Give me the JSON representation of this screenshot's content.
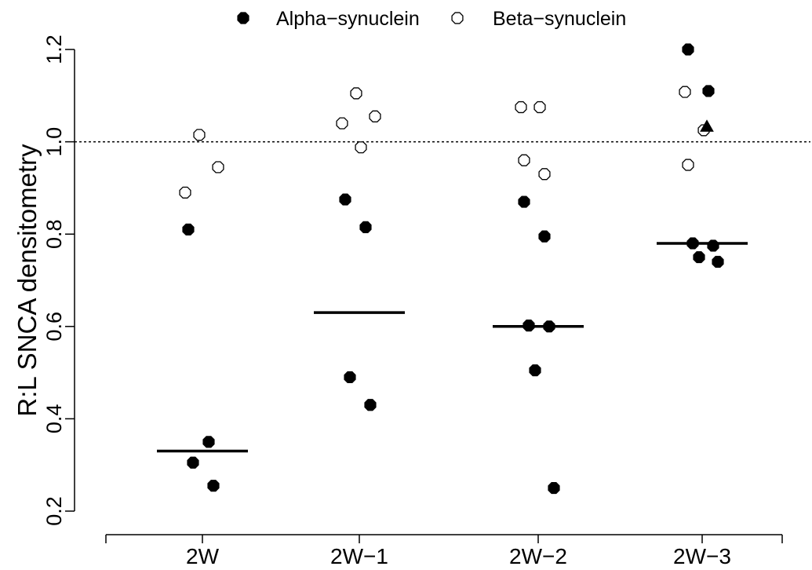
{
  "chart_data": {
    "type": "scatter",
    "title": "",
    "xlabel": "",
    "ylabel": "R:L SNCA densitometry",
    "categories": [
      "2W",
      "2W−1",
      "2W−2",
      "2W−3"
    ],
    "ylim": [
      0.2,
      1.2
    ],
    "yticks": [
      "0.2",
      "0.4",
      "0.6",
      "0.8",
      "1.0",
      "1.2"
    ],
    "reference_line": {
      "y": 1.0,
      "style": "dotted"
    },
    "legend": {
      "position": "top",
      "entries": [
        "Alpha−synuclein",
        "Beta−synuclein"
      ]
    },
    "series": [
      {
        "name": "Alpha−synuclein",
        "marker": "filled-circle",
        "points": [
          {
            "category": "2W",
            "y": 0.81
          },
          {
            "category": "2W",
            "y": 0.35
          },
          {
            "category": "2W",
            "y": 0.305
          },
          {
            "category": "2W",
            "y": 0.255
          },
          {
            "category": "2W−1",
            "y": 0.875
          },
          {
            "category": "2W−1",
            "y": 0.815
          },
          {
            "category": "2W−1",
            "y": 0.49
          },
          {
            "category": "2W−1",
            "y": 0.43
          },
          {
            "category": "2W−2",
            "y": 0.87
          },
          {
            "category": "2W−2",
            "y": 0.795
          },
          {
            "category": "2W−2",
            "y": 0.602
          },
          {
            "category": "2W−2",
            "y": 0.6
          },
          {
            "category": "2W−2",
            "y": 0.505
          },
          {
            "category": "2W−2",
            "y": 0.25
          },
          {
            "category": "2W−3",
            "y": 1.2
          },
          {
            "category": "2W−3",
            "y": 1.11
          },
          {
            "category": "2W−3",
            "y": 0.78
          },
          {
            "category": "2W−3",
            "y": 0.775
          },
          {
            "category": "2W−3",
            "y": 0.75
          },
          {
            "category": "2W−3",
            "y": 0.74
          }
        ]
      },
      {
        "name": "Beta−synuclein",
        "marker": "open-circle",
        "points": [
          {
            "category": "2W",
            "y": 1.015
          },
          {
            "category": "2W",
            "y": 0.945
          },
          {
            "category": "2W",
            "y": 0.89
          },
          {
            "category": "2W−1",
            "y": 1.105
          },
          {
            "category": "2W−1",
            "y": 1.055
          },
          {
            "category": "2W−1",
            "y": 1.04
          },
          {
            "category": "2W−1",
            "y": 0.988
          },
          {
            "category": "2W−2",
            "y": 1.075
          },
          {
            "category": "2W−2",
            "y": 1.075
          },
          {
            "category": "2W−2",
            "y": 0.96
          },
          {
            "category": "2W−2",
            "y": 0.93
          },
          {
            "category": "2W−3",
            "y": 1.108
          },
          {
            "category": "2W−3",
            "y": 1.025
          },
          {
            "category": "2W−3",
            "y": 0.95
          }
        ]
      }
    ],
    "extra_markers": [
      {
        "category": "2W−3",
        "y": 1.033,
        "marker": "filled-triangle"
      }
    ],
    "medians": [
      {
        "category": "2W",
        "y": 0.33
      },
      {
        "category": "2W−1",
        "y": 0.63
      },
      {
        "category": "2W−2",
        "y": 0.6
      },
      {
        "category": "2W−3",
        "y": 0.78
      }
    ],
    "grid": false
  }
}
